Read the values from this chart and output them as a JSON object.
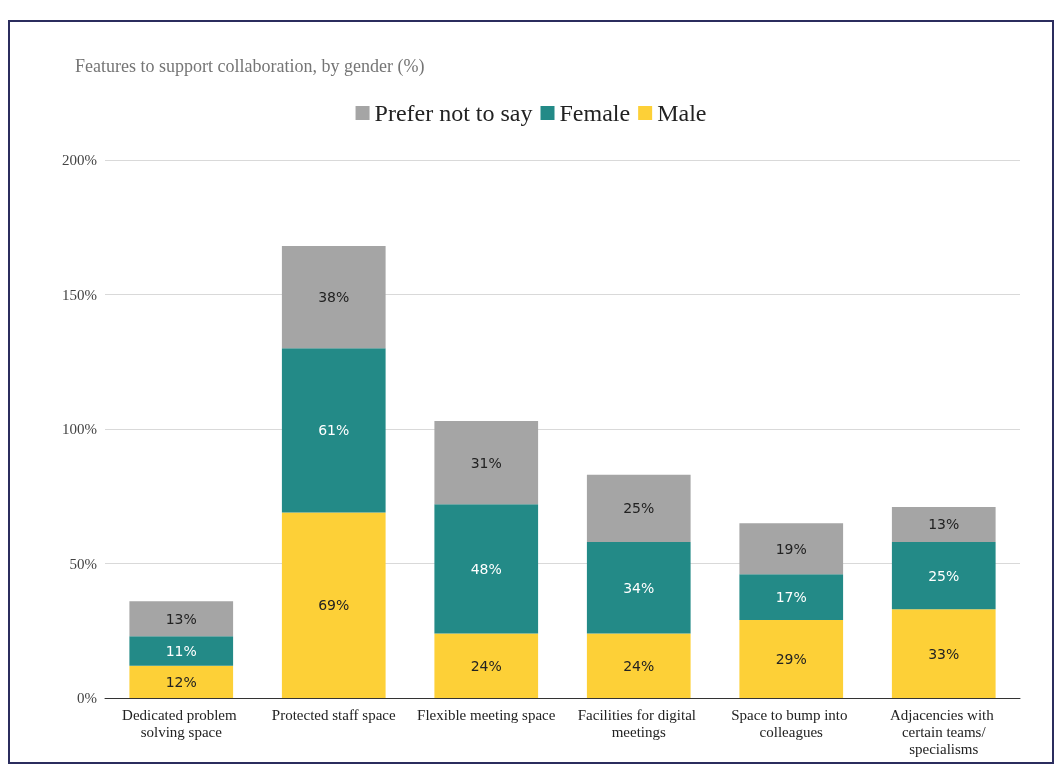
{
  "chart_data": {
    "type": "bar",
    "title": "Features to support collaboration, by gender (%)",
    "categories": [
      "Dedicated problem solving space",
      "Protected staff space",
      "Flexible meeting space",
      "Facilities for digital meetings",
      "Space to bump into colleagues",
      "Adjacencies with certain teams/specialisms"
    ],
    "series": [
      {
        "name": "Male",
        "color": "#fdd037",
        "values": [
          12,
          69,
          24,
          24,
          29,
          33
        ],
        "value_labels": [
          "12%",
          "69%",
          "24%",
          "24%",
          "29%",
          "33%"
        ]
      },
      {
        "name": "Female",
        "color": "#238a87",
        "values": [
          11,
          61,
          48,
          34,
          17,
          25
        ],
        "value_labels": [
          "11%",
          "61%",
          "48%",
          "34%",
          "17%",
          "25%"
        ]
      },
      {
        "name": "Prefer not to say",
        "color": "#a5a5a5",
        "values": [
          13,
          38,
          31,
          25,
          19,
          13
        ],
        "value_labels": [
          "13%",
          "38%",
          "31%",
          "25%",
          "19%",
          "13%"
        ]
      }
    ],
    "stacked": true,
    "ylim": [
      0,
      200
    ],
    "yticks": [
      {
        "value": 0,
        "label": "0%"
      },
      {
        "value": 50,
        "label": "50%"
      },
      {
        "value": 100,
        "label": "100%"
      },
      {
        "value": 150,
        "label": "150%"
      },
      {
        "value": 200,
        "label": "200%"
      }
    ],
    "grid": "y",
    "legend": "top"
  }
}
